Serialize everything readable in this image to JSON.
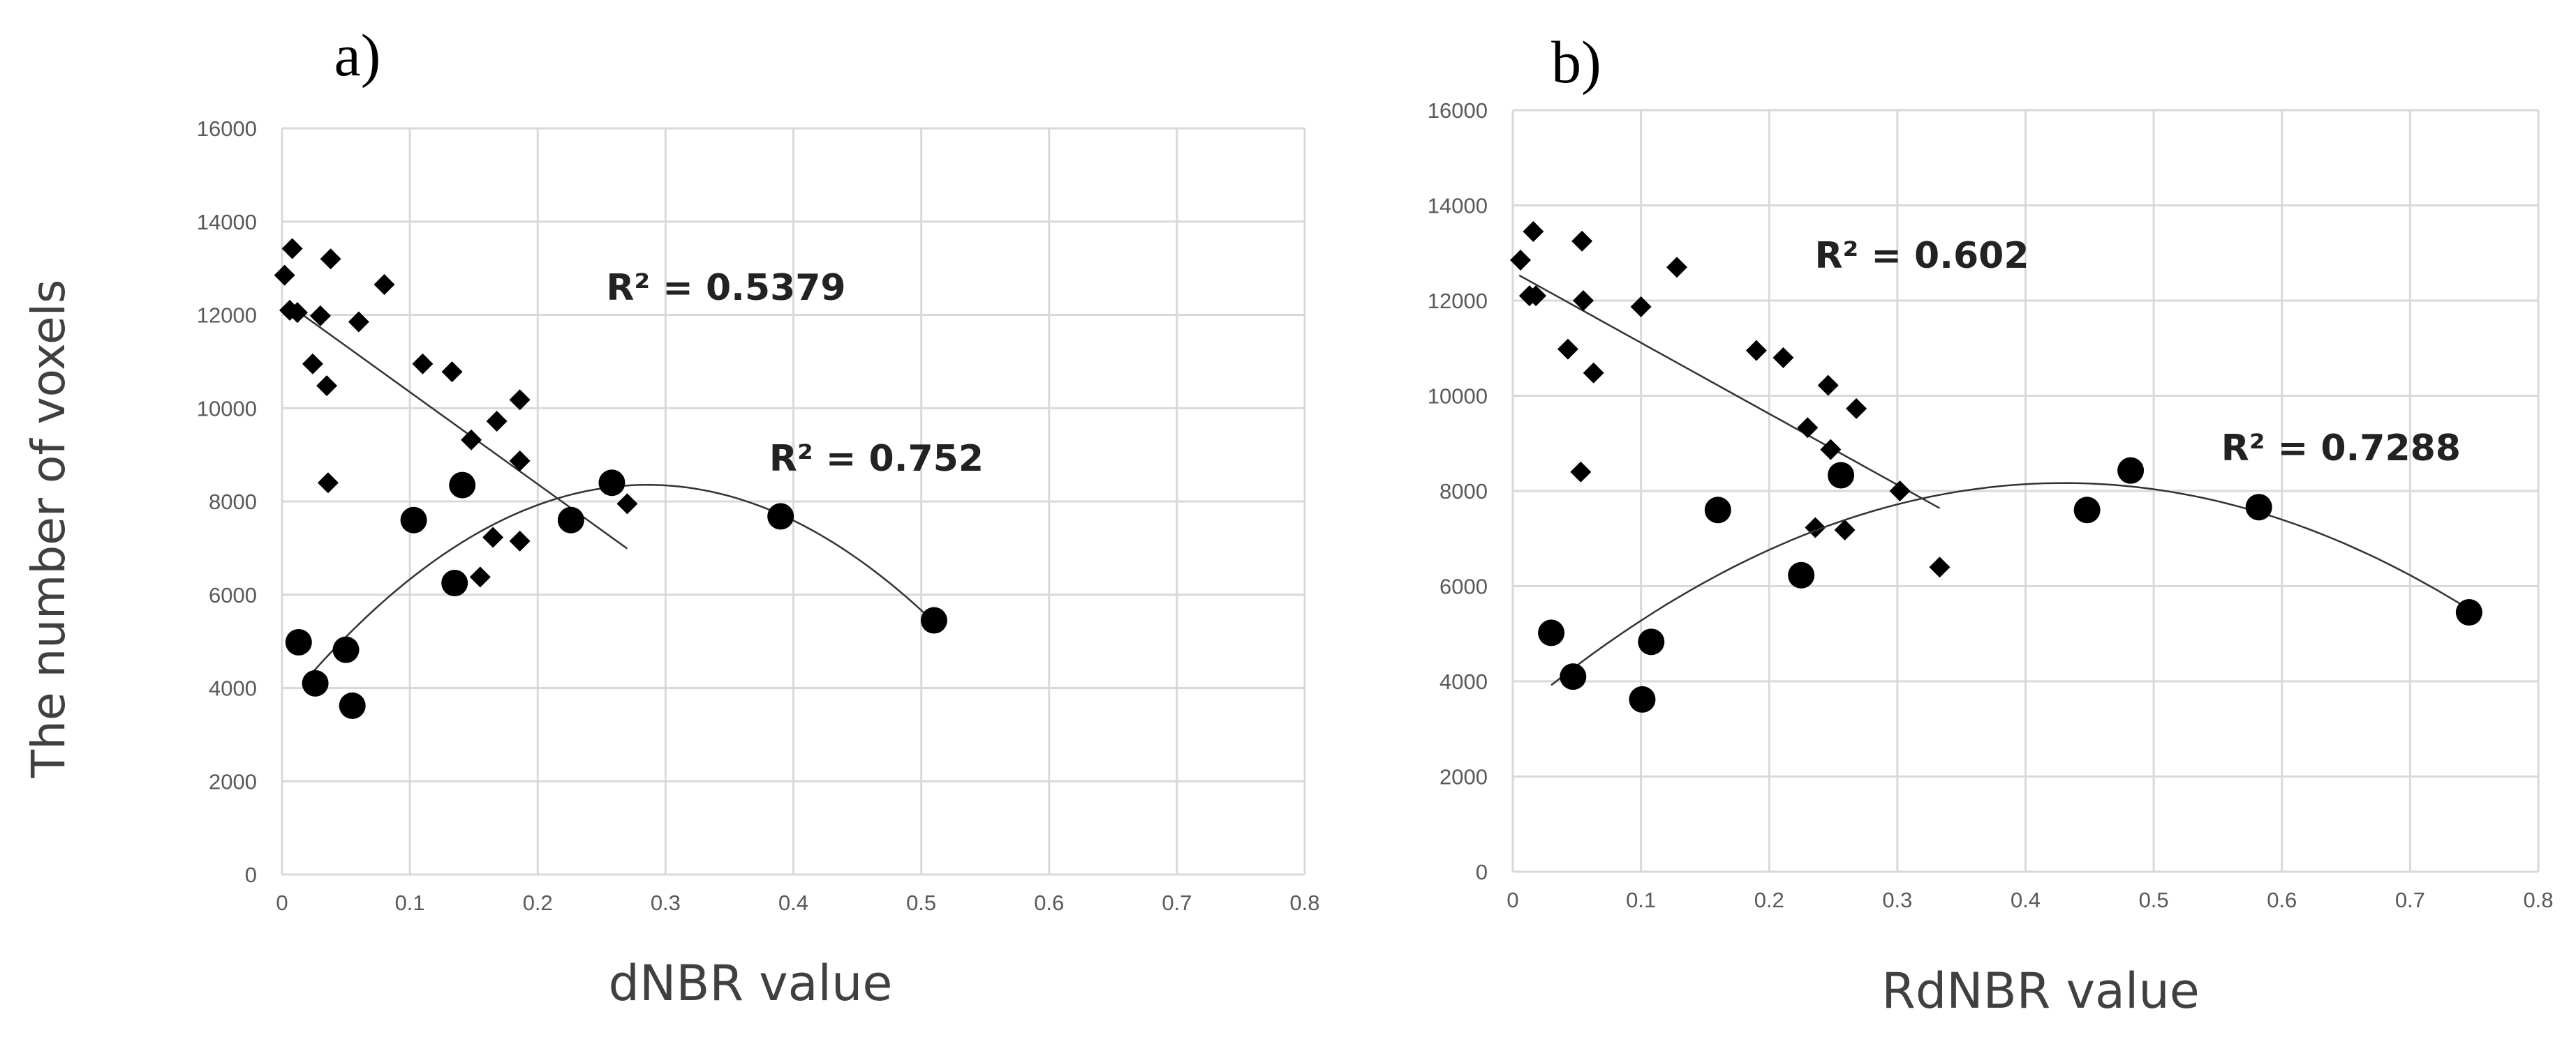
{
  "y_axis_label": "The number of voxels",
  "chart_data": [
    {
      "type": "scatter",
      "panel_label": "a)",
      "xlabel": "dNBR value",
      "xlim": [
        0,
        0.8
      ],
      "ylim": [
        0,
        16000
      ],
      "x_ticks": [
        "0",
        "0.1",
        "0.2",
        "0.3",
        "0.4",
        "0.5",
        "0.6",
        "0.7",
        "0.8"
      ],
      "y_ticks": [
        "0",
        "2000",
        "4000",
        "6000",
        "8000",
        "10000",
        "12000",
        "14000",
        "16000"
      ],
      "grid": true,
      "series": [
        {
          "marker": "diamond",
          "points": [
            [
              0.002,
              12850
            ],
            [
              0.008,
              13420
            ],
            [
              0.006,
              12100
            ],
            [
              0.012,
              12050
            ],
            [
              0.038,
              13200
            ],
            [
              0.03,
              11980
            ],
            [
              0.024,
              10950
            ],
            [
              0.035,
              10480
            ],
            [
              0.036,
              8400
            ],
            [
              0.06,
              11850
            ],
            [
              0.08,
              12650
            ],
            [
              0.11,
              10950
            ],
            [
              0.133,
              10780
            ],
            [
              0.148,
              9320
            ],
            [
              0.155,
              6380
            ],
            [
              0.165,
              7230
            ],
            [
              0.168,
              9720
            ],
            [
              0.186,
              10180
            ],
            [
              0.186,
              8870
            ],
            [
              0.186,
              7150
            ],
            [
              0.27,
              7950
            ]
          ],
          "trendline": {
            "type": "linear",
            "x_range": [
              0.005,
              0.27
            ],
            "r2_label": "R² = 0.5379"
          }
        },
        {
          "marker": "circle",
          "points": [
            [
              0.013,
              4980
            ],
            [
              0.026,
              4100
            ],
            [
              0.05,
              4820
            ],
            [
              0.055,
              3620
            ],
            [
              0.103,
              7600
            ],
            [
              0.135,
              6250
            ],
            [
              0.141,
              8350
            ],
            [
              0.226,
              7600
            ],
            [
              0.258,
              8400
            ],
            [
              0.39,
              7680
            ],
            [
              0.51,
              5450
            ]
          ],
          "trendline": {
            "type": "polynomial",
            "x_range": [
              0.025,
              0.51
            ],
            "r2_label": "R² = 0.752"
          }
        }
      ]
    },
    {
      "type": "scatter",
      "panel_label": "b)",
      "xlabel": "RdNBR value",
      "xlim": [
        0,
        0.8
      ],
      "ylim": [
        0,
        16000
      ],
      "x_ticks": [
        "0",
        "0.1",
        "0.2",
        "0.3",
        "0.4",
        "0.5",
        "0.6",
        "0.7",
        "0.8"
      ],
      "y_ticks": [
        "0",
        "2000",
        "4000",
        "6000",
        "8000",
        "10000",
        "12000",
        "14000",
        "16000"
      ],
      "grid": true,
      "series": [
        {
          "marker": "diamond",
          "points": [
            [
              0.006,
              12850
            ],
            [
              0.016,
              13450
            ],
            [
              0.013,
              12100
            ],
            [
              0.018,
              12100
            ],
            [
              0.054,
              13250
            ],
            [
              0.055,
              12000
            ],
            [
              0.043,
              10980
            ],
            [
              0.063,
              10480
            ],
            [
              0.053,
              8400
            ],
            [
              0.1,
              11870
            ],
            [
              0.128,
              12700
            ],
            [
              0.19,
              10950
            ],
            [
              0.211,
              10800
            ],
            [
              0.23,
              9330
            ],
            [
              0.236,
              7230
            ],
            [
              0.246,
              10220
            ],
            [
              0.248,
              8870
            ],
            [
              0.259,
              7180
            ],
            [
              0.268,
              9730
            ],
            [
              0.302,
              8000
            ],
            [
              0.333,
              6400
            ]
          ],
          "trendline": {
            "type": "linear",
            "x_range": [
              0.005,
              0.333
            ],
            "r2_label": "R² = 0.602"
          }
        },
        {
          "marker": "circle",
          "points": [
            [
              0.03,
              5020
            ],
            [
              0.047,
              4100
            ],
            [
              0.101,
              3620
            ],
            [
              0.108,
              4830
            ],
            [
              0.16,
              7600
            ],
            [
              0.225,
              6230
            ],
            [
              0.256,
              8330
            ],
            [
              0.448,
              7600
            ],
            [
              0.482,
              8430
            ],
            [
              0.582,
              7660
            ],
            [
              0.746,
              5450
            ]
          ],
          "trendline": {
            "type": "polynomial",
            "x_range": [
              0.03,
              0.746
            ],
            "r2_label": "R² = 0.7288"
          }
        }
      ]
    }
  ]
}
